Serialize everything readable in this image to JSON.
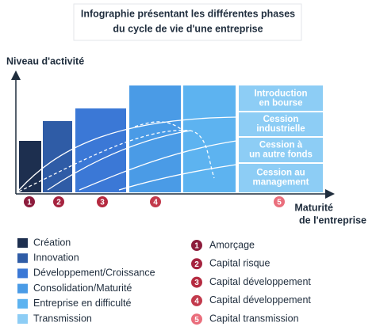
{
  "title": {
    "lines": [
      "Infographie présentant les différentes phases",
      "du cycle de vie d'une entreprise"
    ]
  },
  "axes": {
    "y_label": "Niveau d'activité",
    "x_label": {
      "lines": [
        "Maturité",
        "de l'entreprise"
      ]
    }
  },
  "exit_options": [
    {
      "lines": [
        "Introduction",
        "en bourse"
      ]
    },
    {
      "lines": [
        "Cession",
        "industrielle"
      ]
    },
    {
      "lines": [
        "Cession à",
        "un autre fonds"
      ]
    },
    {
      "lines": [
        "Cession au",
        "management"
      ]
    }
  ],
  "markers": [
    "1",
    "2",
    "3",
    "4",
    "5"
  ],
  "phases": [
    {
      "name": "Création",
      "color": "#1d2f4f"
    },
    {
      "name": "Innovation",
      "color": "#2f5ca6"
    },
    {
      "name": "Développement/Croissance",
      "color": "#3b78d6"
    },
    {
      "name": "Consolidation/Maturité",
      "color": "#4a9be6"
    },
    {
      "name": "Entreprise en difficulté",
      "color": "#5db3f0"
    },
    {
      "name": "Transmission",
      "color": "#8dcdf5"
    }
  ],
  "financing": [
    {
      "number": "1",
      "label": "Amorçage",
      "color": "#8c1c3c"
    },
    {
      "number": "2",
      "label": "Capital risque",
      "color": "#a5233f"
    },
    {
      "number": "3",
      "label": "Capital développement",
      "color": "#b52a40"
    },
    {
      "number": "4",
      "label": "Capital développement",
      "color": "#c23a4c"
    },
    {
      "number": "5",
      "label": "Capital transmission",
      "color": "#ea6e7c"
    }
  ]
}
